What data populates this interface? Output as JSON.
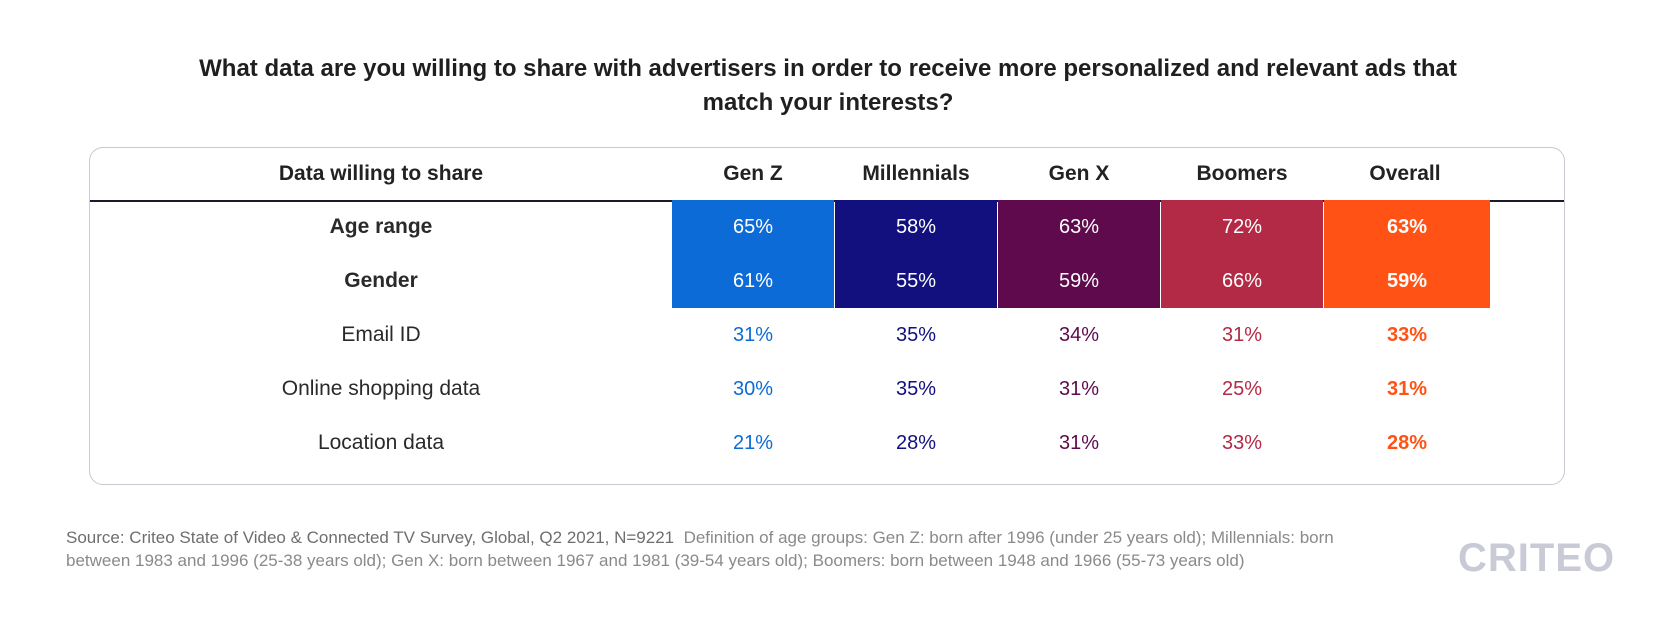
{
  "title": "What data are you willing to share with advertisers in order to receive more personalized and relevant ads that match your interests?",
  "colors": {
    "gen_z": "#0c6bd6",
    "millennials": "#12107e",
    "gen_x": "#5e0a4c",
    "boomers": "#b22a45",
    "overall": "#ff5214"
  },
  "chart_data": {
    "type": "table",
    "title": "What data are you willing to share with advertisers in order to receive more personalized and relevant ads that match your interests?",
    "columns": [
      "Data willing to share",
      "Gen Z",
      "Millennials",
      "Gen X",
      "Boomers",
      "Overall"
    ],
    "rows": [
      {
        "label": "Age range",
        "highlighted": true,
        "values": [
          "65%",
          "58%",
          "63%",
          "72%",
          "63%"
        ]
      },
      {
        "label": "Gender",
        "highlighted": true,
        "values": [
          "61%",
          "55%",
          "59%",
          "66%",
          "59%"
        ]
      },
      {
        "label": "Email ID",
        "highlighted": false,
        "values": [
          "31%",
          "35%",
          "34%",
          "31%",
          "33%"
        ]
      },
      {
        "label": "Online shopping data",
        "highlighted": false,
        "values": [
          "30%",
          "35%",
          "31%",
          "25%",
          "31%"
        ]
      },
      {
        "label": "Location data",
        "highlighted": false,
        "values": [
          "21%",
          "28%",
          "31%",
          "33%",
          "28%"
        ]
      }
    ]
  },
  "source_lead": "Source: Criteo State of Video & Connected TV Survey, Global, Q2 2021, N=9221",
  "source_definition": "Definition of age groups: Gen Z: born after 1996 (under 25 years old); Millennials: born between 1983 and 1996 (25-38 years old); Gen X: born between 1967 and 1981 (39-54 years old); Boomers: born between 1948 and 1966 (55-73 years old)",
  "logo_text": "CRITEO"
}
